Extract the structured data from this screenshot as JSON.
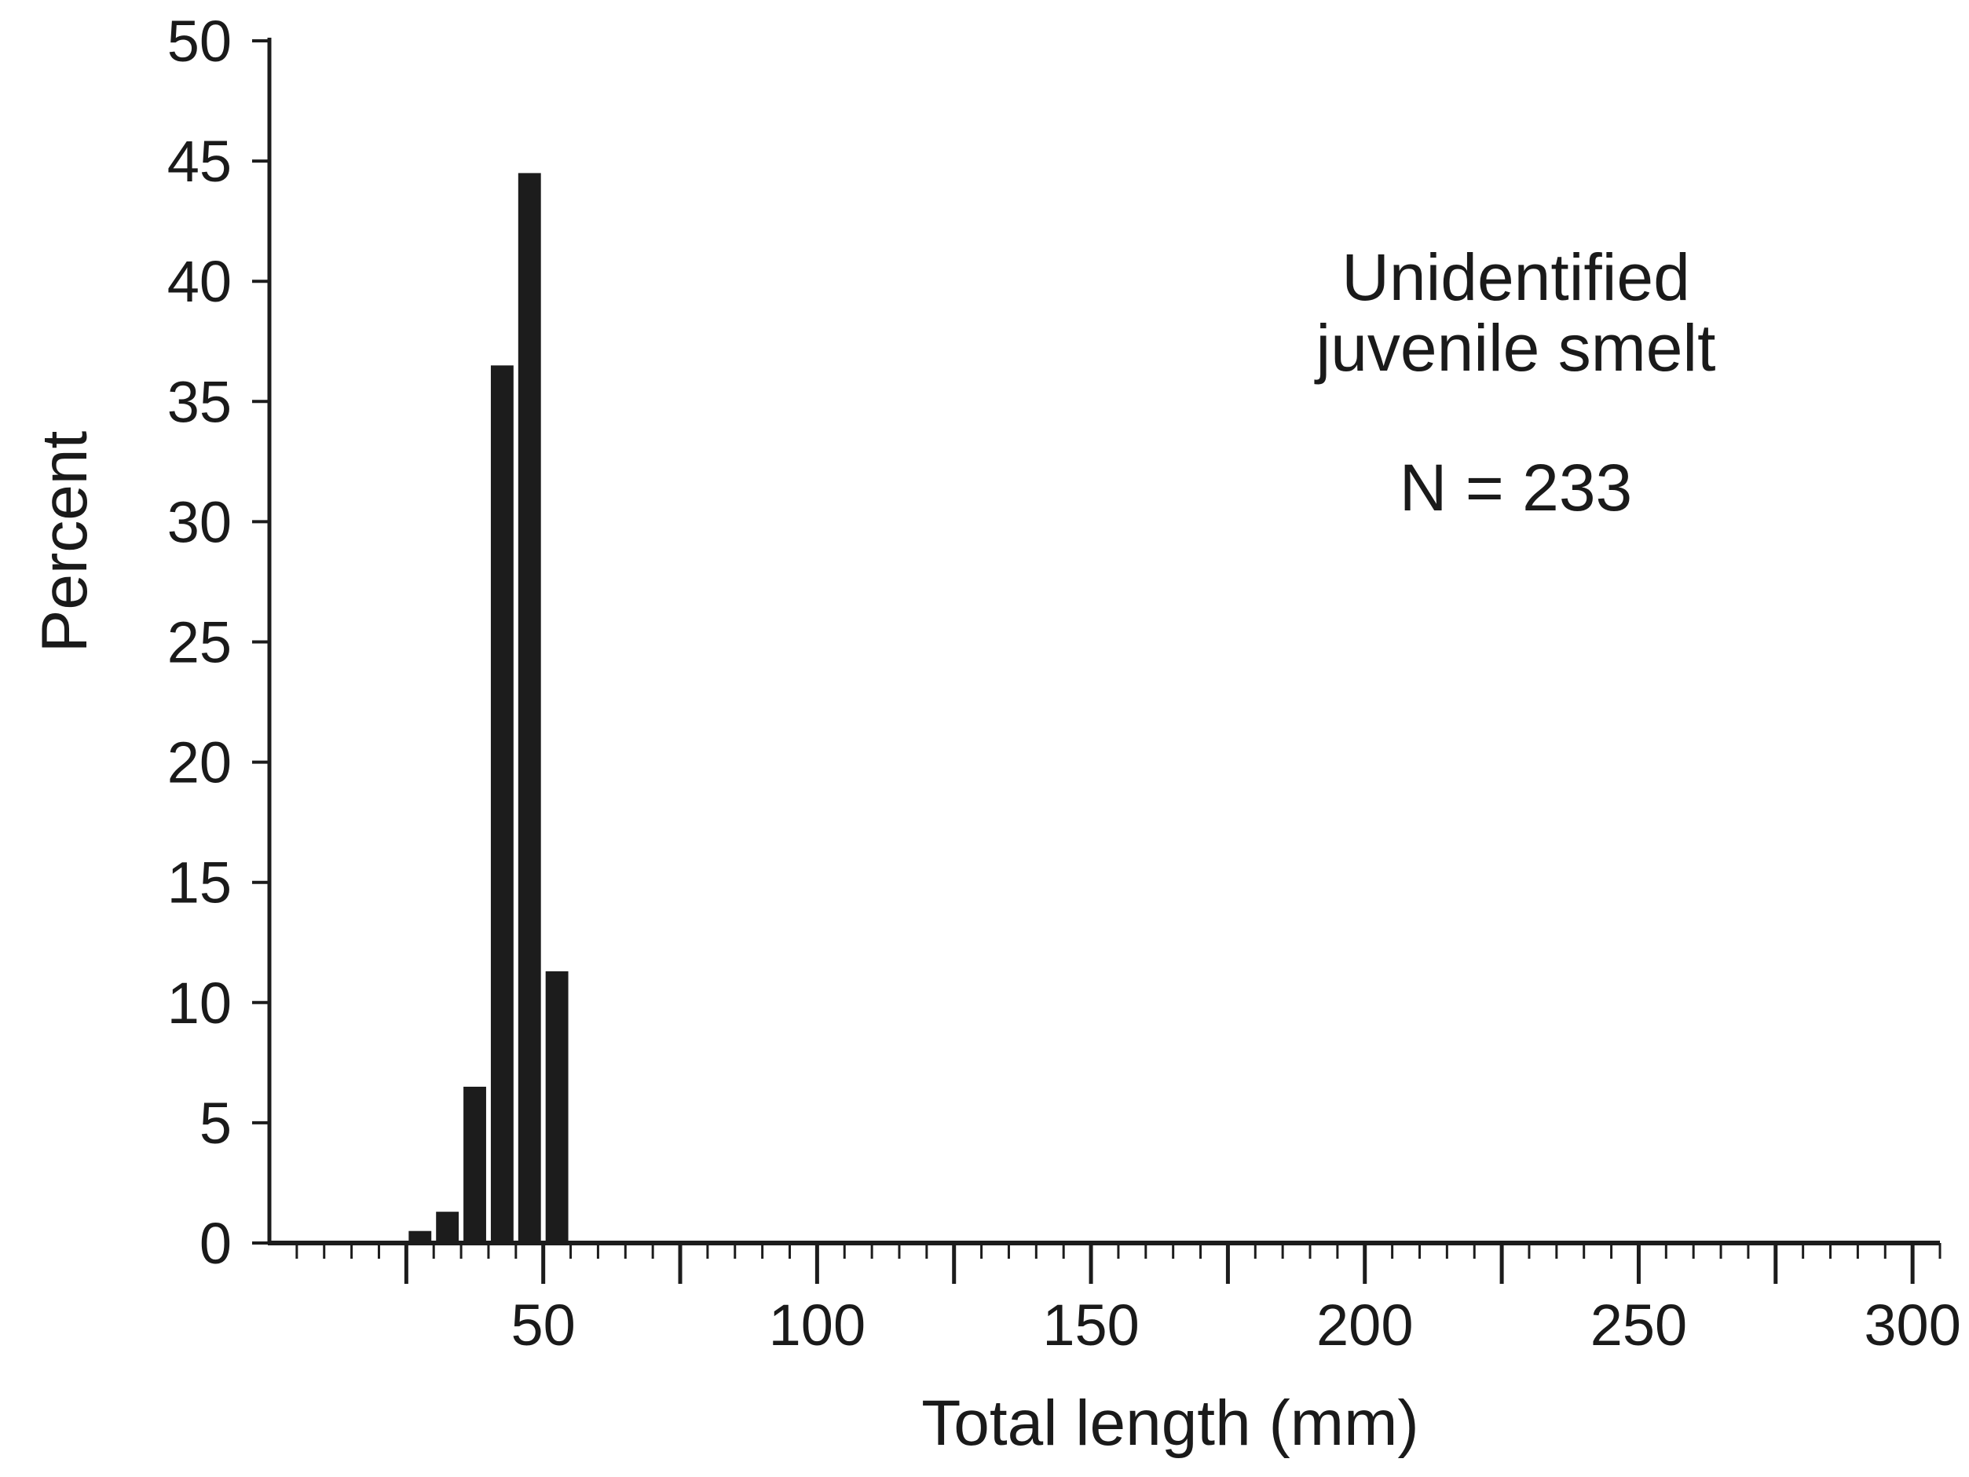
{
  "chart_data": {
    "type": "bar",
    "title": "",
    "xlabel": "Total length (mm)",
    "ylabel": "Percent",
    "xlim": [
      0,
      305
    ],
    "ylim": [
      0,
      50
    ],
    "x_ticks": [
      50,
      100,
      150,
      200,
      250,
      300
    ],
    "x_tick_labels": [
      "50",
      "100",
      "150",
      "200",
      "250",
      "300"
    ],
    "y_ticks": [
      0,
      5,
      10,
      15,
      20,
      25,
      30,
      35,
      40,
      45,
      50
    ],
    "y_tick_labels": [
      "0",
      "5",
      "10",
      "15",
      "20",
      "25",
      "30",
      "35",
      "40",
      "45",
      "50"
    ],
    "x_minor_tick_step": 5,
    "x_major_tick_positions": [
      25,
      50,
      75,
      100,
      125,
      150,
      175,
      200,
      225,
      250,
      275,
      300
    ],
    "bin_width": 5,
    "bars": [
      {
        "x": 25,
        "value": 0.5
      },
      {
        "x": 30,
        "value": 1.3
      },
      {
        "x": 35,
        "value": 6.5
      },
      {
        "x": 40,
        "value": 36.5
      },
      {
        "x": 45,
        "value": 44.5
      },
      {
        "x": 50,
        "value": 11.3
      }
    ],
    "annotations": [
      "Unidentified",
      "juvenile  smelt",
      "N  =  233"
    ],
    "grid": false,
    "bar_color": "#1c1c1c",
    "axis_color": "#1c1c1c"
  }
}
